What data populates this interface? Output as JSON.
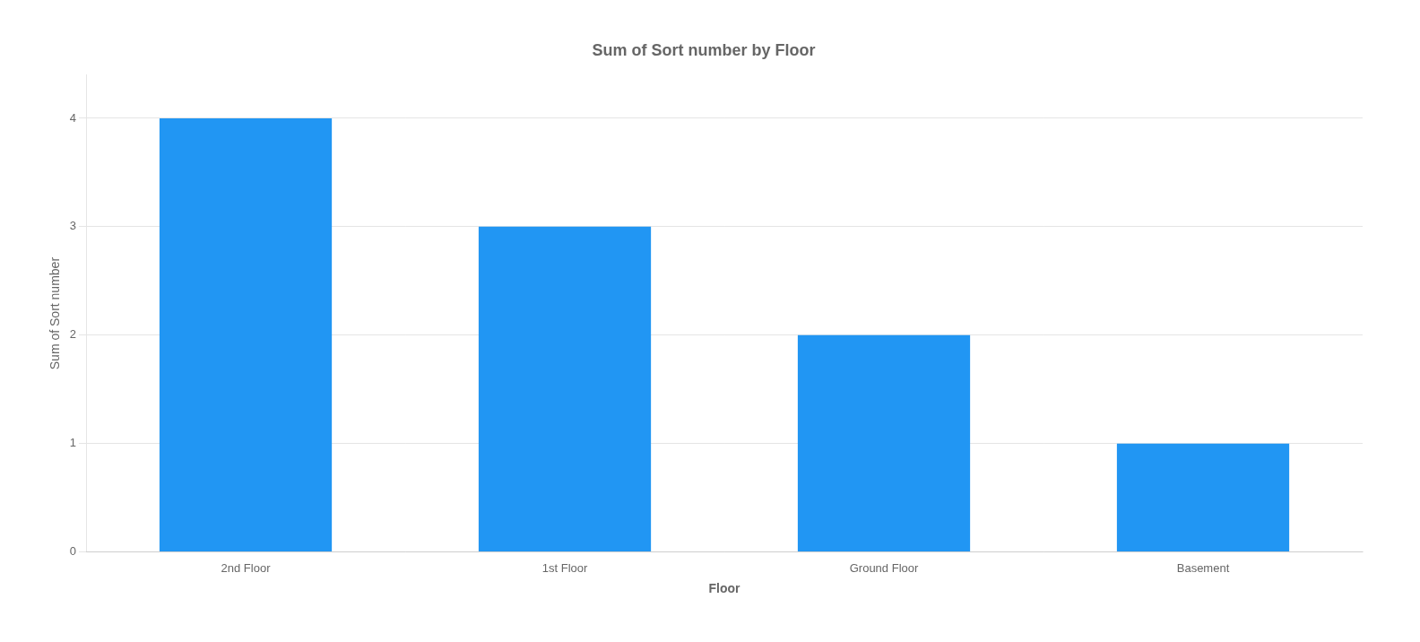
{
  "chart_data": {
    "type": "bar",
    "title": "Sum of Sort number by Floor",
    "categories": [
      "2nd Floor",
      "1st Floor",
      "Ground Floor",
      "Basement"
    ],
    "values": [
      4,
      3,
      2,
      1
    ],
    "color": "#2196F3",
    "xlabel": "Floor",
    "ylabel": "Sum of Sort number",
    "ylim": [
      0,
      4.4
    ],
    "yticks": [
      0,
      1,
      2,
      3,
      4
    ],
    "grid": true
  }
}
